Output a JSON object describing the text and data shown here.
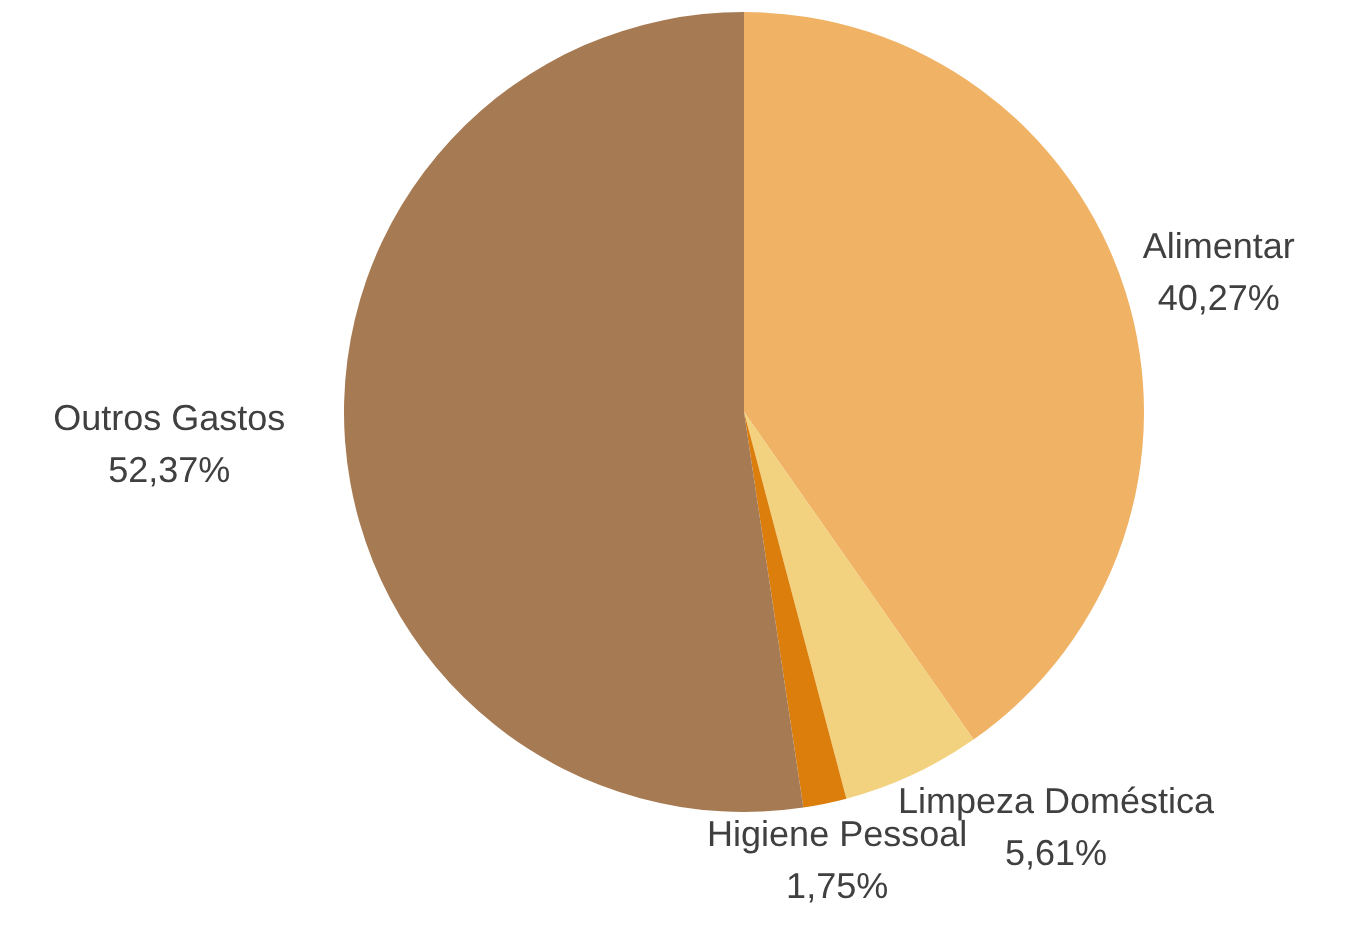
{
  "chart_data": {
    "type": "pie",
    "categories": [
      "Alimentar",
      "Limpeza Doméstica",
      "Higiene Pessoal",
      "Outros Gastos"
    ],
    "values": [
      40.27,
      5.61,
      1.75,
      52.37
    ],
    "value_labels": [
      "40,27%",
      "5,61%",
      "1,75%",
      "52,37%"
    ],
    "colors": [
      "#f0b366",
      "#f2d27e",
      "#dc7e0b",
      "#a67a52"
    ],
    "legend": false
  }
}
